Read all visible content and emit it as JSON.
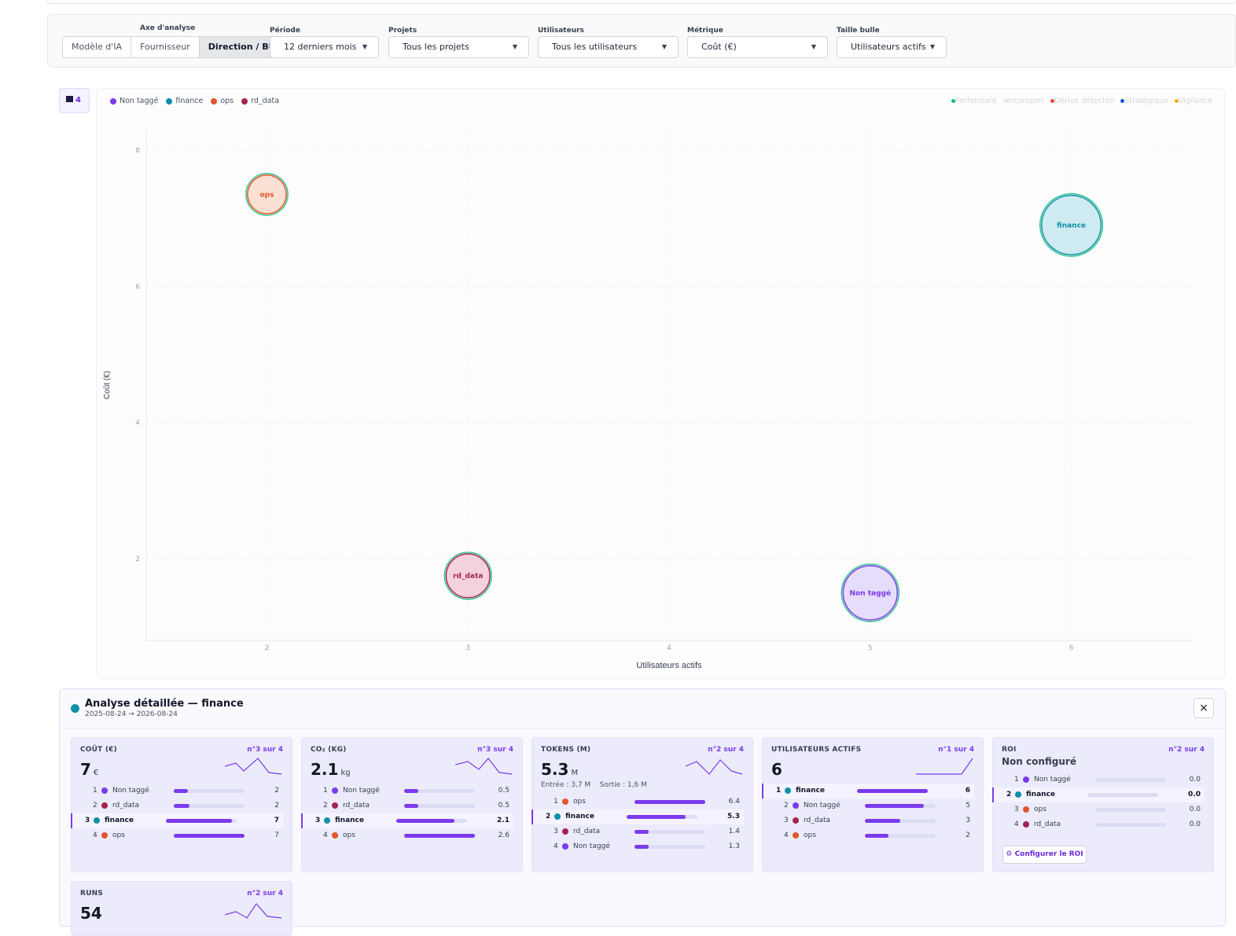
{
  "filters": {
    "axis": {
      "label": "Axe d'analyse",
      "options": [
        "Modèle d'IA",
        "Fournisseur",
        "Direction / BU"
      ],
      "active": "Direction / BU"
    },
    "period": {
      "label": "Période",
      "value": "12 derniers mois"
    },
    "projects": {
      "label": "Projets",
      "value": "Tous les projets"
    },
    "users": {
      "label": "Utilisateurs",
      "value": "Tous les utilisateurs"
    },
    "metric": {
      "label": "Métrique",
      "value": "Coût (€)"
    },
    "bubble_size": {
      "label": "Taille bulle",
      "value": "Utilisateurs actifs"
    }
  },
  "legend_toggle": {
    "count": "4"
  },
  "legend": [
    {
      "name": "Non taggé",
      "color": "#7c3aed"
    },
    {
      "name": "finance",
      "color": "#0e8fa8"
    },
    {
      "name": "ops",
      "color": "#e2552b"
    },
    {
      "name": "rd_data",
      "color": "#a3244e"
    }
  ],
  "status_legend": [
    {
      "name": "Performant",
      "color": "#10b981"
    },
    {
      "name": "Incomplet",
      "color": "#e5e7eb"
    },
    {
      "name": "Dérive détectée",
      "color": "#ef4444"
    },
    {
      "name": "Stratégique",
      "color": "#1d4ed8"
    },
    {
      "name": "Vigilance",
      "color": "#eab308"
    }
  ],
  "chart_data": {
    "type": "scatter",
    "xlabel": "Utilisateurs actifs",
    "ylabel": "Coût (€)",
    "xticks": [
      2,
      3,
      4,
      5,
      6
    ],
    "yticks": [
      2,
      4,
      6,
      8
    ],
    "xlim": [
      1.4,
      6.6
    ],
    "ylim": [
      0.8,
      8.3
    ],
    "grid": true,
    "points": [
      {
        "label": "ops",
        "x": 2,
        "y": 7.35,
        "size": 2,
        "color": "#e2552b",
        "fill": "#fbe0d4"
      },
      {
        "label": "finance",
        "x": 6,
        "y": 6.9,
        "size": 6,
        "color": "#0e8fa8",
        "fill": "#cdebf0"
      },
      {
        "label": "rd_data",
        "x": 3,
        "y": 1.75,
        "size": 3,
        "color": "#a3244e",
        "fill": "#f3d2dc"
      },
      {
        "label": "Non taggé",
        "x": 5,
        "y": 1.5,
        "size": 5,
        "color": "#7c3aed",
        "fill": "#e6dcfb"
      }
    ]
  },
  "detail": {
    "title": "Analyse détaillée — finance",
    "dates": "2025-08-24 → 2026-08-24",
    "close": "×",
    "cards": [
      {
        "title": "COÛT (€)",
        "rank": "n°3 sur 4",
        "value": "7",
        "unit": "€",
        "rows": [
          {
            "rank": "1",
            "name": "Non taggé",
            "color": "#7c3aed",
            "value": "2",
            "pct": 0.2
          },
          {
            "rank": "2",
            "name": "rd_data",
            "color": "#a3244e",
            "value": "2",
            "pct": 0.22
          },
          {
            "rank": "3",
            "name": "finance",
            "color": "#0e8fa8",
            "value": "7",
            "pct": 0.93,
            "hl": true
          },
          {
            "rank": "4",
            "name": "ops",
            "color": "#e2552b",
            "value": "7",
            "pct": 1.0
          }
        ]
      },
      {
        "title": "CO₂ (KG)",
        "rank": "n°3 sur 4",
        "value": "2.1",
        "unit": "kg",
        "rows": [
          {
            "rank": "1",
            "name": "Non taggé",
            "color": "#7c3aed",
            "value": "0.5",
            "pct": 0.2
          },
          {
            "rank": "2",
            "name": "rd_data",
            "color": "#a3244e",
            "value": "0.5",
            "pct": 0.2
          },
          {
            "rank": "3",
            "name": "finance",
            "color": "#0e8fa8",
            "value": "2.1",
            "pct": 0.82,
            "hl": true
          },
          {
            "rank": "4",
            "name": "ops",
            "color": "#e2552b",
            "value": "2.6",
            "pct": 1.0
          }
        ]
      },
      {
        "title": "TOKENS (M)",
        "rank": "n°2 sur 4",
        "value": "5.3",
        "unit": "M",
        "sub": "Entrée : 3,7 M    Sortie : 1,6 M",
        "rows": [
          {
            "rank": "1",
            "name": "ops",
            "color": "#e2552b",
            "value": "6.4",
            "pct": 1.0
          },
          {
            "rank": "2",
            "name": "finance",
            "color": "#0e8fa8",
            "value": "5.3",
            "pct": 0.83,
            "hl": true
          },
          {
            "rank": "3",
            "name": "rd_data",
            "color": "#a3244e",
            "value": "1.4",
            "pct": 0.2
          },
          {
            "rank": "4",
            "name": "Non taggé",
            "color": "#7c3aed",
            "value": "1.3",
            "pct": 0.2
          }
        ]
      },
      {
        "title": "UTILISATEURS ACTIFS",
        "rank": "n°1 sur 4",
        "value": "6",
        "unit": "",
        "rows": [
          {
            "rank": "1",
            "name": "finance",
            "color": "#0e8fa8",
            "value": "6",
            "pct": 1.0,
            "hl": true
          },
          {
            "rank": "2",
            "name": "Non taggé",
            "color": "#7c3aed",
            "value": "5",
            "pct": 0.83
          },
          {
            "rank": "3",
            "name": "rd_data",
            "color": "#a3244e",
            "value": "3",
            "pct": 0.5
          },
          {
            "rank": "4",
            "name": "ops",
            "color": "#e2552b",
            "value": "2",
            "pct": 0.33
          }
        ]
      },
      {
        "title": "ROI",
        "rank": "n°2 sur 4",
        "status": "Non configuré",
        "button": "Configurer le ROI",
        "rows": [
          {
            "rank": "1",
            "name": "Non taggé",
            "color": "#7c3aed",
            "value": "0.0",
            "pct": 0
          },
          {
            "rank": "2",
            "name": "finance",
            "color": "#0e8fa8",
            "value": "0.0",
            "pct": 0,
            "hl": true
          },
          {
            "rank": "3",
            "name": "ops",
            "color": "#e2552b",
            "value": "0.0",
            "pct": 0
          },
          {
            "rank": "4",
            "name": "rd_data",
            "color": "#a3244e",
            "value": "0.0",
            "pct": 0
          }
        ]
      },
      {
        "title": "RUNS",
        "rank": "n°2 sur 4",
        "value": "54",
        "unit": "",
        "rows": []
      }
    ]
  }
}
